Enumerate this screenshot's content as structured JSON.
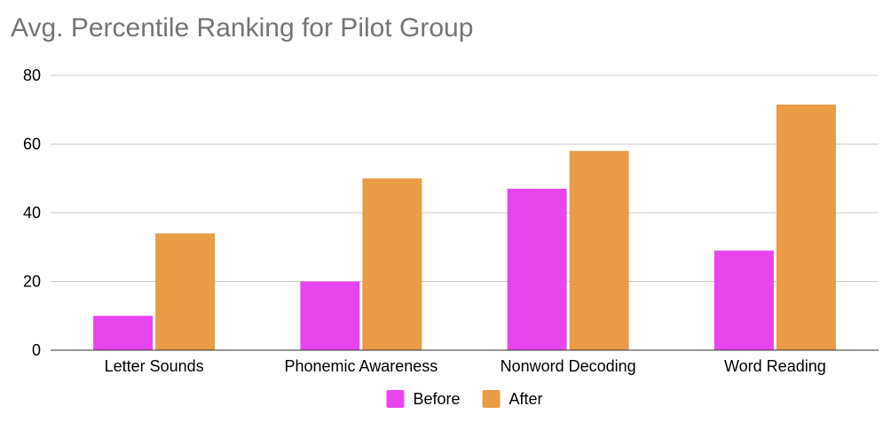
{
  "chart_data": {
    "type": "bar",
    "title": "Avg. Percentile Ranking for Pilot Group",
    "xlabel": "",
    "ylabel": "",
    "categories": [
      "Letter Sounds",
      "Phonemic Awareness",
      "Nonword Decoding",
      "Word Reading"
    ],
    "series": [
      {
        "name": "Before",
        "color": "#e844ee",
        "values": [
          10,
          20,
          47,
          29
        ]
      },
      {
        "name": "After",
        "color": "#e99b45",
        "values": [
          34,
          50,
          58,
          71.5
        ]
      }
    ],
    "ylim": [
      0,
      80
    ],
    "yticks": [
      "0",
      "20",
      "40",
      "60",
      "80"
    ],
    "grid": true,
    "legend_position": "bottom"
  }
}
